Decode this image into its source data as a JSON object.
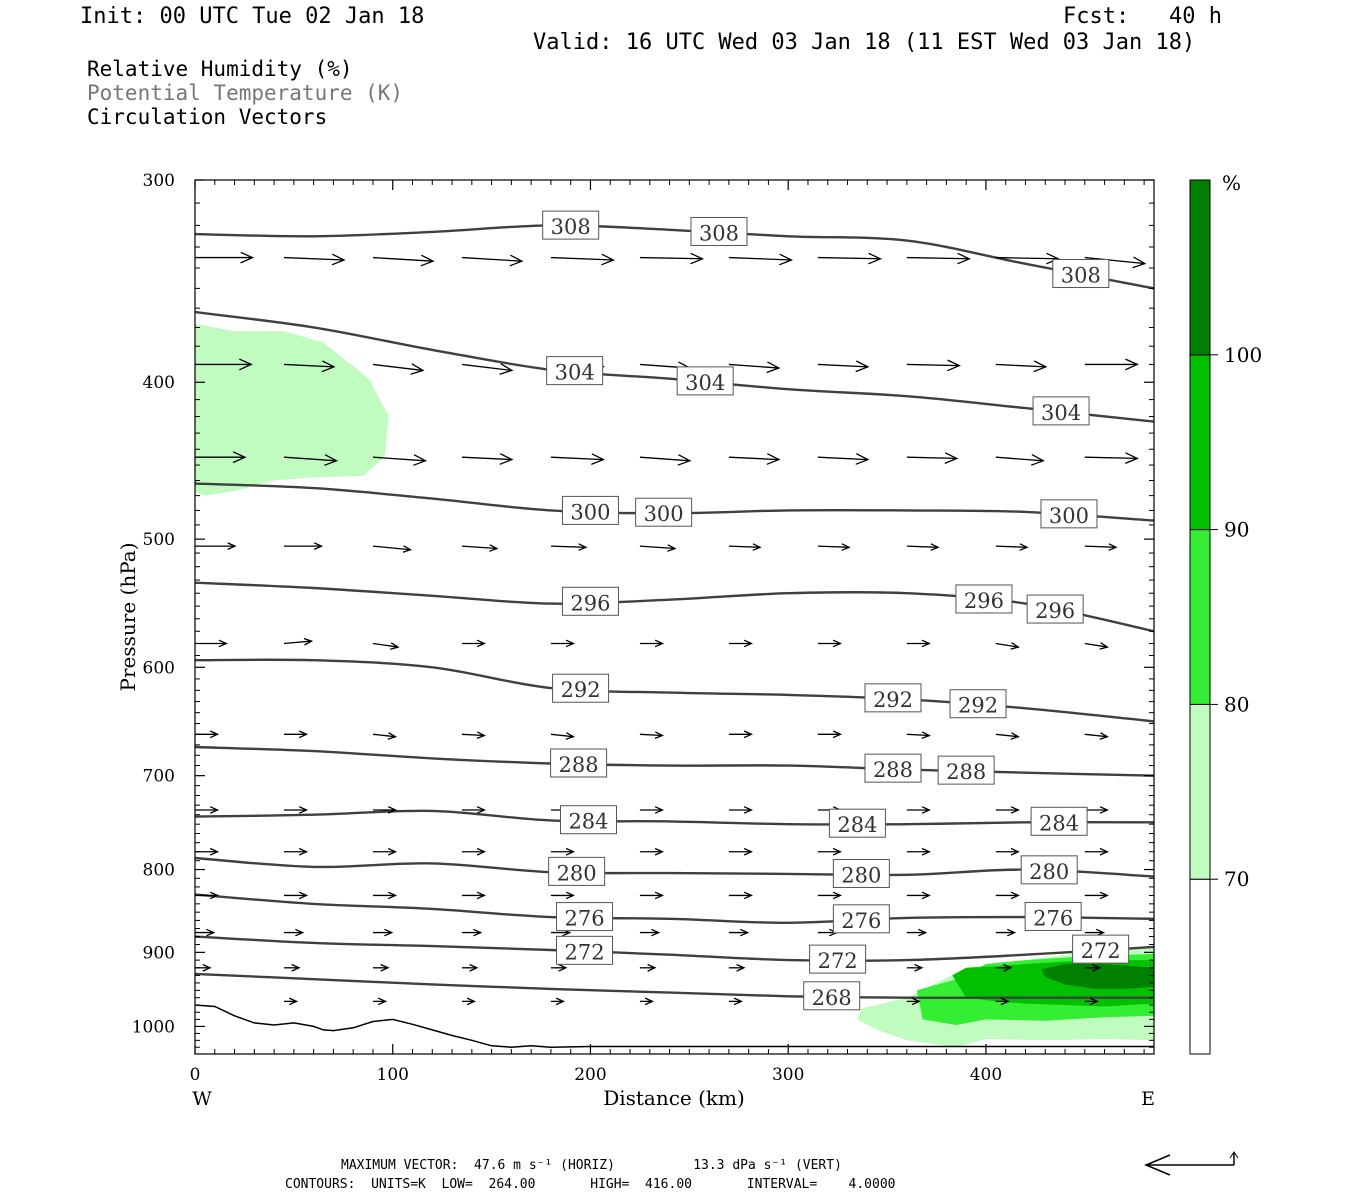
{
  "header": {
    "init": "Init: 00 UTC Tue 02 Jan 18",
    "fcst": "Fcst:   40 h",
    "valid": "Valid: 16 UTC Wed 03 Jan 18 (11 EST Wed 03 Jan 18)"
  },
  "legend": {
    "rh": "Relative Humidity (%)",
    "theta": "Potential Temperature (K)",
    "vectors": "Circulation Vectors"
  },
  "colors": {
    "rh70": "#c0fcc0",
    "rh80": "#33ee33",
    "rh90": "#00c000",
    "rh100": "#008000",
    "contour": "#404040",
    "vector": "#000000",
    "terrain": "#000000"
  },
  "chart_data": {
    "type": "cross-section",
    "xlabel": "Distance (km)",
    "ylabel": "Pressure (hPa)",
    "xlim": [
      0,
      485
    ],
    "ylim": [
      1040,
      300
    ],
    "y_log_scale": true,
    "x_ticks": [
      0,
      100,
      200,
      300,
      400
    ],
    "y_ticks": [
      300,
      400,
      500,
      600,
      700,
      800,
      900,
      1000
    ],
    "x_end_labels": {
      "left": "W",
      "right": "E"
    },
    "colorbar": {
      "unit_label": "%",
      "levels": [
        70,
        80,
        90,
        100
      ],
      "colors": [
        "#ffffff",
        "#c0fcc0",
        "#33ee33",
        "#00c000",
        "#008000"
      ]
    },
    "theta_contours": [
      {
        "value": 308,
        "x": [
          0,
          60,
          120,
          180,
          240,
          300,
          360,
          420,
          485
        ],
        "p": [
          324,
          325,
          323,
          320,
          322,
          325,
          327,
          338,
          350
        ],
        "labels_x": [
          190,
          265,
          448
        ]
      },
      {
        "value": 304,
        "x": [
          0,
          60,
          120,
          180,
          240,
          300,
          360,
          420,
          485
        ],
        "p": [
          362,
          370,
          382,
          393,
          398,
          404,
          408,
          415,
          423
        ],
        "labels_x": [
          192,
          258,
          438
        ]
      },
      {
        "value": 300,
        "x": [
          0,
          60,
          120,
          180,
          240,
          300,
          360,
          420,
          485
        ],
        "p": [
          462,
          465,
          472,
          480,
          482,
          480,
          480,
          481,
          487
        ],
        "labels_x": [
          200,
          237,
          442
        ]
      },
      {
        "value": 296,
        "x": [
          0,
          60,
          120,
          180,
          240,
          300,
          360,
          420,
          485
        ],
        "p": [
          532,
          536,
          542,
          548,
          545,
          540,
          540,
          548,
          570
        ],
        "labels_x": [
          200,
          399,
          435
        ]
      },
      {
        "value": 292,
        "x": [
          0,
          60,
          120,
          180,
          240,
          300,
          360,
          420,
          485
        ],
        "p": [
          594,
          594,
          600,
          618,
          622,
          624,
          628,
          636,
          648
        ],
        "labels_x": [
          195,
          353,
          396
        ]
      },
      {
        "value": 288,
        "x": [
          0,
          60,
          120,
          180,
          240,
          300,
          360,
          420,
          485
        ],
        "p": [
          672,
          676,
          683,
          688,
          690,
          690,
          694,
          697,
          700
        ],
        "labels_x": [
          194,
          353,
          390
        ]
      },
      {
        "value": 284,
        "x": [
          0,
          60,
          120,
          180,
          240,
          300,
          360,
          420,
          485
        ],
        "p": [
          742,
          740,
          736,
          746,
          747,
          750,
          750,
          748,
          748
        ],
        "labels_x": [
          199,
          335,
          437
        ]
      },
      {
        "value": 280,
        "x": [
          0,
          60,
          120,
          180,
          240,
          300,
          360,
          420,
          485
        ],
        "p": [
          787,
          797,
          793,
          803,
          804,
          805,
          806,
          800,
          808
        ],
        "labels_x": [
          193,
          337,
          432
        ]
      },
      {
        "value": 276,
        "x": [
          0,
          60,
          120,
          180,
          240,
          300,
          360,
          420,
          485
        ],
        "p": [
          829,
          840,
          846,
          856,
          858,
          863,
          857,
          856,
          858
        ],
        "labels_x": [
          197,
          337,
          434
        ]
      },
      {
        "value": 272,
        "x": [
          0,
          60,
          120,
          180,
          240,
          300,
          360,
          420,
          485
        ],
        "p": [
          880,
          888,
          892,
          897,
          903,
          910,
          910,
          903,
          893
        ],
        "labels_x": [
          197,
          325,
          458
        ]
      },
      {
        "value": 268,
        "x": [
          0,
          60,
          120,
          180,
          240,
          300,
          360,
          420,
          485
        ],
        "p": [
          928,
          935,
          942,
          948,
          953,
          958,
          960,
          960,
          960
        ],
        "labels_x": [
          322
        ]
      }
    ],
    "contour_labels": {
      "308": "308",
      "304": "304",
      "300": "300",
      "296": "296",
      "292": "292",
      "288": "288",
      "284": "284",
      "280": "280",
      "276": "276",
      "272": "272",
      "268": "268"
    },
    "terrain_pressure": {
      "x": [
        0,
        10,
        20,
        30,
        40,
        50,
        60,
        65,
        70,
        80,
        90,
        100,
        110,
        120,
        130,
        140,
        150,
        160,
        170,
        180,
        200,
        250,
        300,
        350,
        400,
        450,
        485
      ],
      "p": [
        970,
        972,
        985,
        995,
        998,
        995,
        1000,
        1005,
        1006,
        1002,
        993,
        990,
        997,
        1005,
        1013,
        1020,
        1028,
        1030,
        1028,
        1030,
        1029,
        1029,
        1029,
        1029,
        1029,
        1029,
        1029
      ]
    },
    "rh_regions": [
      {
        "level": 70,
        "x": [
          0,
          20,
          45,
          65,
          88,
          98,
          96,
          85,
          60,
          40,
          20,
          5,
          0
        ],
        "p": [
          368,
          372,
          372,
          378,
          398,
          420,
          445,
          457,
          458,
          460,
          467,
          470,
          468
        ]
      },
      {
        "level": 70,
        "x": [
          337,
          360,
          390,
          420,
          450,
          485,
          485,
          460,
          430,
          400,
          385,
          360,
          345,
          335
        ],
        "p": [
          975,
          960,
          920,
          910,
          900,
          892,
          1020,
          1018,
          1020,
          1018,
          1030,
          1020,
          1005,
          990
        ]
      },
      {
        "level": 80,
        "x": [
          365,
          385,
          400,
          420,
          450,
          485,
          485,
          460,
          430,
          400,
          385,
          368
        ],
        "p": [
          950,
          935,
          915,
          910,
          905,
          902,
          985,
          987,
          992,
          990,
          998,
          990
        ]
      },
      {
        "level": 90,
        "x": [
          383,
          390,
          405,
          420,
          440,
          460,
          485,
          485,
          460,
          440,
          420,
          405,
          390
        ],
        "p": [
          930,
          920,
          918,
          915,
          912,
          910,
          910,
          968,
          972,
          970,
          968,
          965,
          960
        ]
      },
      {
        "level": 100,
        "x": [
          428,
          440,
          460,
          475,
          485,
          485,
          470,
          455,
          440,
          430
        ],
        "p": [
          922,
          915,
          915,
          918,
          920,
          945,
          948,
          948,
          942,
          932
        ]
      }
    ],
    "vectors": {
      "rows": [
        {
          "p": 335,
          "x": [
            0,
            45,
            90,
            135,
            180,
            225,
            270,
            315,
            360,
            405,
            450
          ],
          "u": [
            46,
            48,
            48,
            48,
            50,
            50,
            50,
            50,
            50,
            50,
            48
          ],
          "v": [
            0,
            2,
            3,
            3,
            2,
            1,
            2,
            1,
            1,
            1,
            5
          ]
        },
        {
          "p": 390,
          "x": [
            0,
            45,
            90,
            135,
            180,
            225,
            270,
            315,
            360,
            405,
            450
          ],
          "u": [
            45,
            40,
            40,
            40,
            42,
            40,
            40,
            40,
            42,
            40,
            42
          ],
          "v": [
            0,
            2,
            5,
            5,
            2,
            3,
            3,
            2,
            1,
            2,
            0
          ]
        },
        {
          "p": 445,
          "x": [
            0,
            45,
            90,
            135,
            180,
            225,
            270,
            315,
            360,
            405,
            450
          ],
          "u": [
            40,
            42,
            42,
            40,
            42,
            40,
            40,
            40,
            40,
            38,
            42
          ],
          "v": [
            0,
            3,
            3,
            2,
            2,
            3,
            2,
            2,
            1,
            3,
            1
          ]
        },
        {
          "p": 505,
          "x": [
            0,
            45,
            90,
            135,
            180,
            225,
            270,
            315,
            360,
            405,
            450
          ],
          "u": [
            32,
            30,
            30,
            28,
            28,
            28,
            25,
            25,
            25,
            25,
            25
          ],
          "v": [
            0,
            0,
            3,
            2,
            1,
            2,
            1,
            1,
            1,
            1,
            1
          ]
        },
        {
          "p": 580,
          "x": [
            0,
            45,
            90,
            135,
            180,
            225,
            270,
            315,
            360,
            405,
            450
          ],
          "u": [
            25,
            22,
            20,
            18,
            18,
            18,
            18,
            18,
            18,
            18,
            18
          ],
          "v": [
            0,
            -2,
            3,
            0,
            0,
            0,
            0,
            0,
            0,
            3,
            3
          ]
        },
        {
          "p": 660,
          "x": [
            0,
            45,
            90,
            135,
            180,
            225,
            270,
            315,
            360,
            405,
            450
          ],
          "u": [
            18,
            18,
            18,
            18,
            18,
            18,
            18,
            18,
            18,
            18,
            18
          ],
          "v": [
            0,
            0,
            2,
            1,
            2,
            1,
            0,
            0,
            1,
            2,
            2
          ]
        },
        {
          "p": 735,
          "x": [
            0,
            45,
            90,
            135,
            180,
            225,
            270,
            315,
            360,
            405,
            450
          ],
          "u": [
            18,
            18,
            18,
            18,
            18,
            18,
            18,
            18,
            18,
            18,
            18
          ],
          "v": [
            0,
            0,
            0,
            0,
            0,
            0,
            0,
            0,
            0,
            0,
            0
          ]
        },
        {
          "p": 780,
          "x": [
            0,
            45,
            90,
            135,
            180,
            225,
            270,
            315,
            360,
            405,
            450
          ],
          "u": [
            18,
            18,
            18,
            18,
            18,
            18,
            18,
            18,
            18,
            18,
            18
          ],
          "v": [
            0,
            0,
            0,
            0,
            0,
            0,
            0,
            0,
            0,
            0,
            0
          ]
        },
        {
          "p": 830,
          "x": [
            0,
            45,
            90,
            135,
            180,
            225,
            270,
            315,
            360,
            405,
            450
          ],
          "u": [
            18,
            18,
            18,
            18,
            18,
            18,
            18,
            18,
            18,
            18,
            18
          ],
          "v": [
            0,
            0,
            0,
            0,
            0,
            0,
            0,
            0,
            0,
            0,
            0
          ]
        },
        {
          "p": 875,
          "x": [
            0,
            45,
            90,
            135,
            180,
            225,
            270,
            315,
            360,
            405,
            450
          ],
          "u": [
            15,
            15,
            15,
            15,
            15,
            15,
            15,
            15,
            15,
            15,
            15
          ],
          "v": [
            0,
            0,
            0,
            0,
            0,
            0,
            0,
            0,
            0,
            0,
            0
          ]
        },
        {
          "p": 920,
          "x": [
            0,
            45,
            90,
            135,
            180,
            225,
            270,
            315,
            360,
            405,
            450
          ],
          "u": [
            12,
            12,
            12,
            12,
            12,
            12,
            12,
            12,
            12,
            12,
            12
          ],
          "v": [
            0,
            0,
            0,
            0,
            0,
            0,
            0,
            0,
            0,
            0,
            0
          ]
        },
        {
          "p": 965,
          "x": [
            45,
            90,
            135,
            180,
            225,
            270,
            315,
            360,
            405,
            450
          ],
          "u": [
            10,
            10,
            10,
            10,
            10,
            10,
            10,
            10,
            10,
            10
          ],
          "v": [
            0,
            0,
            0,
            0,
            0,
            0,
            0,
            0,
            0,
            0
          ]
        }
      ]
    },
    "footer": {
      "max_vector": "MAXIMUM VECTOR:  47.6 m s⁻¹ (HORIZ)          13.3 dPa s⁻¹ (VERT)",
      "contours": "CONTOURS:  UNITS=K  LOW=  264.00       HIGH=  416.00       INTERVAL=    4.0000"
    }
  }
}
